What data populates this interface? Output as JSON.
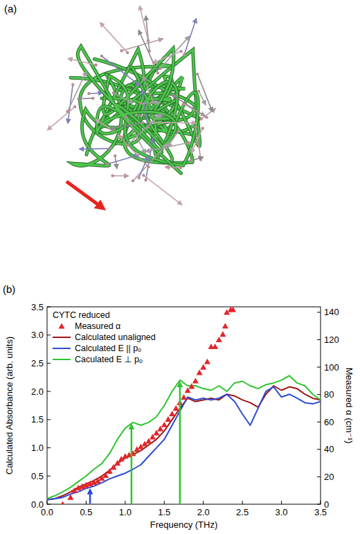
{
  "panel_a": {
    "label": "(a)"
  },
  "chart_data": {
    "type": "line",
    "panel_label": "(b)",
    "legend_title": "CYTC reduced",
    "legend": "upper left",
    "x_label": "Frequency (THz)",
    "y_label": "Calculated Absorbance (arb. units)",
    "y2_label": "Measured α (cm⁻¹)",
    "xlim": [
      0,
      3.5
    ],
    "ylim": [
      0,
      3.5
    ],
    "y2lim": [
      0,
      144
    ],
    "xticks": [
      {
        "value": 0,
        "label": "0.0"
      },
      0.5,
      {
        "value": 1,
        "label": "1.0"
      },
      1.5,
      {
        "value": 2,
        "label": "2.0"
      },
      2.5,
      {
        "value": 3,
        "label": "3.0"
      },
      3.5
    ],
    "yticks": [
      {
        "value": 0,
        "label": "0.0"
      },
      0.5,
      {
        "value": 1,
        "label": "1.0"
      },
      1.5,
      {
        "value": 2,
        "label": "2.0"
      },
      2.5,
      {
        "value": 3,
        "label": "3.0"
      },
      3.5
    ],
    "y2ticks": [
      0,
      20,
      40,
      60,
      80,
      100,
      120,
      140
    ],
    "series": [
      {
        "name": "Measured α",
        "type": "scatter",
        "marker": "triangle",
        "axis": "y2",
        "color": "#e3262a",
        "x": [
          0.2,
          0.3,
          0.35,
          0.4,
          0.45,
          0.5,
          0.55,
          0.6,
          0.65,
          0.7,
          0.75,
          0.8,
          0.85,
          0.9,
          0.95,
          1.0,
          1.05,
          1.1,
          1.15,
          1.2,
          1.25,
          1.3,
          1.35,
          1.4,
          1.45,
          1.5,
          1.55,
          1.6,
          1.65,
          1.7,
          1.75,
          1.8,
          1.85,
          1.9,
          1.95,
          2.0,
          2.05,
          2.1,
          2.15,
          2.2,
          2.25,
          2.28,
          2.3,
          2.35,
          2.38
        ],
        "values": [
          0,
          5,
          10,
          12,
          13,
          14,
          15,
          16,
          17,
          19,
          21,
          24,
          27,
          30,
          33,
          35,
          36,
          37,
          40,
          42,
          44,
          46,
          49,
          52,
          55,
          58,
          62,
          66,
          70,
          74,
          78,
          83,
          86,
          90,
          96,
          100,
          104,
          115,
          115,
          120,
          124,
          130,
          140,
          142,
          142
        ]
      },
      {
        "name": "Calculated unaligned",
        "type": "line",
        "color": "#a01414",
        "x": [
          0,
          0.1,
          0.2,
          0.3,
          0.4,
          0.5,
          0.6,
          0.7,
          0.8,
          0.9,
          1.0,
          1.1,
          1.2,
          1.3,
          1.4,
          1.5,
          1.6,
          1.7,
          1.8,
          1.9,
          2.0,
          2.1,
          2.2,
          2.3,
          2.4,
          2.5,
          2.6,
          2.7,
          2.8,
          2.9,
          3.0,
          3.1,
          3.2,
          3.3,
          3.4,
          3.5
        ],
        "values": [
          0.08,
          0.1,
          0.15,
          0.22,
          0.3,
          0.36,
          0.42,
          0.5,
          0.6,
          0.72,
          0.82,
          0.88,
          0.95,
          1.05,
          1.15,
          1.3,
          1.5,
          1.7,
          1.88,
          1.82,
          1.85,
          1.88,
          1.85,
          1.95,
          1.92,
          1.85,
          1.8,
          1.72,
          1.95,
          2.1,
          2.02,
          2.08,
          2.05,
          1.95,
          1.88,
          1.85
        ]
      },
      {
        "name": "Calculated E || pₒ",
        "type": "line",
        "color": "#2a4bd7",
        "x": [
          0,
          0.1,
          0.2,
          0.3,
          0.4,
          0.5,
          0.6,
          0.7,
          0.8,
          0.9,
          1.0,
          1.1,
          1.2,
          1.3,
          1.4,
          1.5,
          1.6,
          1.7,
          1.8,
          1.9,
          2.0,
          2.1,
          2.2,
          2.3,
          2.4,
          2.5,
          2.6,
          2.7,
          2.8,
          2.9,
          3.0,
          3.1,
          3.2,
          3.3,
          3.4,
          3.5
        ],
        "values": [
          0.08,
          0.1,
          0.12,
          0.18,
          0.22,
          0.28,
          0.32,
          0.38,
          0.45,
          0.5,
          0.55,
          0.62,
          0.7,
          0.85,
          1.0,
          1.15,
          1.4,
          1.65,
          1.9,
          1.85,
          1.88,
          1.85,
          1.88,
          1.95,
          1.82,
          1.6,
          1.4,
          1.7,
          2.0,
          2.08,
          1.9,
          1.95,
          1.88,
          1.8,
          1.78,
          1.82
        ]
      },
      {
        "name": "Caculated E ⊥ pₒ",
        "type": "line",
        "color": "#2fc42f",
        "x": [
          0,
          0.1,
          0.2,
          0.3,
          0.4,
          0.5,
          0.6,
          0.7,
          0.8,
          0.9,
          1.0,
          1.1,
          1.2,
          1.3,
          1.4,
          1.5,
          1.6,
          1.7,
          1.8,
          1.9,
          2.0,
          2.1,
          2.2,
          2.3,
          2.4,
          2.5,
          2.6,
          2.7,
          2.8,
          2.9,
          3.0,
          3.1,
          3.2,
          3.3,
          3.4,
          3.5
        ],
        "values": [
          0.1,
          0.15,
          0.22,
          0.3,
          0.4,
          0.5,
          0.62,
          0.72,
          0.9,
          1.15,
          1.35,
          1.45,
          1.4,
          1.45,
          1.55,
          1.75,
          2.0,
          2.2,
          2.1,
          2.1,
          2.05,
          2.02,
          2.1,
          2.0,
          2.15,
          2.18,
          2.1,
          2.05,
          2.12,
          2.15,
          2.2,
          2.28,
          2.15,
          2.1,
          1.95,
          1.85
        ]
      }
    ],
    "arrows": [
      {
        "x": 0.55,
        "y": 0.3,
        "color": "#2a4bd7"
      },
      {
        "x": 1.08,
        "y": 1.45,
        "color": "#2fc42f"
      },
      {
        "x": 1.7,
        "y": 2.2,
        "color": "#2fc42f"
      }
    ]
  }
}
